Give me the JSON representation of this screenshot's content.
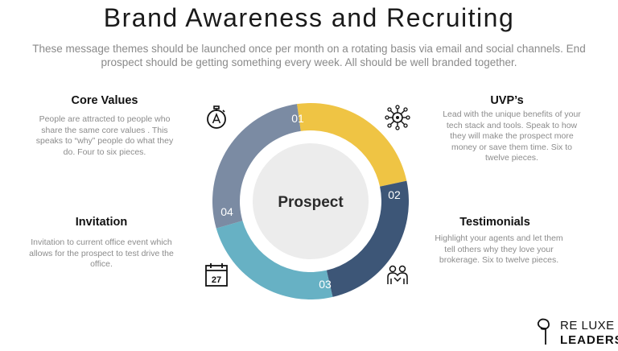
{
  "title": "Brand Awareness and Recruiting",
  "subtitle": "These message themes should be launched once per month on a rotating basis via email and social channels.  End prospect should be getting something every week.  All should be well branded together.",
  "center_label": "Prospect",
  "segments": [
    {
      "number": "01",
      "color": "#efc444"
    },
    {
      "number": "02",
      "color": "#3d5677"
    },
    {
      "number": "03",
      "color": "#67b1c4"
    },
    {
      "number": "04",
      "color": "#7b8ba3"
    }
  ],
  "sections": {
    "core_values": {
      "heading": "Core Values",
      "text": "People are attracted to people who share the same core values . This speaks to “why” people do what they do. Four to six pieces.",
      "icon": "stopwatch-icon"
    },
    "uvps": {
      "heading": "UVP’s",
      "text": "Lead with the unique benefits of your tech stack and tools.  Speak to how they will make the prospect more money or save them time.  Six to twelve pieces.",
      "icon": "network-icon"
    },
    "testimonials": {
      "heading": "Testimonials",
      "text": "Highlight your agents and let them tell others why they love your brokerage.  Six to twelve pieces.",
      "icon": "people-icon"
    },
    "invitation": {
      "heading": "Invitation",
      "text": "Invitation to current office event which allows for the prospect to test drive the office.",
      "icon": "calendar-icon",
      "calendar_day": "27"
    }
  },
  "logo": {
    "line1": "RE LUXE",
    "line2": "LEADERS"
  }
}
